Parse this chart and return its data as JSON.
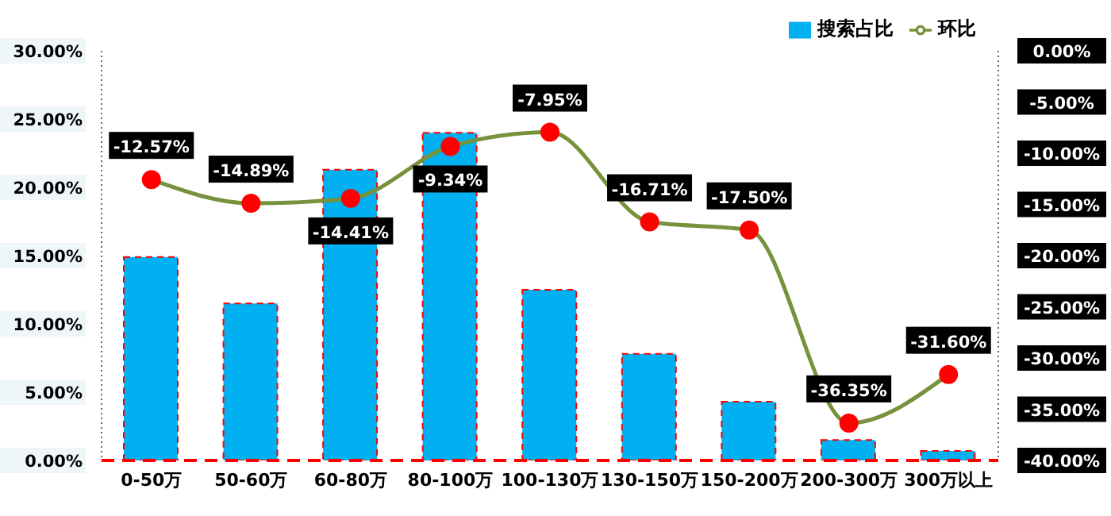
{
  "chart_data": {
    "type": "bar",
    "categories": [
      "0-50万",
      "50-60万",
      "60-80万",
      "80-100万",
      "100-130万",
      "130-150万",
      "150-200万",
      "200-300万",
      "300万以上"
    ],
    "series": [
      {
        "name": "搜索占比",
        "color": "#00b0f0",
        "values": [
          14.9,
          11.5,
          21.3,
          24.0,
          12.5,
          7.8,
          4.3,
          1.5,
          0.7
        ]
      },
      {
        "name": "环比",
        "type": "line",
        "axis": "y2",
        "color": "#76923c",
        "colors": [
          "#ff0000",
          "#ff0000",
          "#ff0000",
          "#ff0000",
          "#ff0000",
          "#ff0000",
          "#ff0000",
          "#ff0000",
          "#ff0000"
        ],
        "values": [
          -12.57,
          -14.89,
          -14.41,
          -9.34,
          -7.95,
          -16.71,
          -17.5,
          -36.35,
          -31.6
        ],
        "value_labels": [
          "-12.57%",
          "-14.89%",
          "-14.41%",
          "-9.34%",
          "-7.95%",
          "-16.71%",
          "-17.50%",
          "-36.35%",
          "-31.60%"
        ]
      }
    ],
    "ylim": [
      0,
      30
    ],
    "yticks": [
      {
        "value": 0,
        "label": "0.00%"
      },
      {
        "value": 5,
        "label": "5.00%"
      },
      {
        "value": 10,
        "label": "10.00%"
      },
      {
        "value": 15,
        "label": "15.00%"
      },
      {
        "value": 20,
        "label": "20.00%"
      },
      {
        "value": 25,
        "label": "25.00%"
      },
      {
        "value": 30,
        "label": "30.00%"
      }
    ],
    "y2lim": [
      -40,
      0
    ],
    "y2ticks": [
      {
        "value": -40,
        "label": "-40.00%"
      },
      {
        "value": -35,
        "label": "-35.00%"
      },
      {
        "value": -30,
        "label": "-30.00%"
      },
      {
        "value": -25,
        "label": "-25.00%"
      },
      {
        "value": -20,
        "label": "-20.00%"
      },
      {
        "value": -15,
        "label": "-15.00%"
      },
      {
        "value": -10,
        "label": "-10.00%"
      },
      {
        "value": -5,
        "label": "-5.00%"
      },
      {
        "value": 0,
        "label": "0.00%"
      }
    ],
    "grid": false,
    "legend": "top right",
    "marker": "circle",
    "line_style": "solid"
  }
}
